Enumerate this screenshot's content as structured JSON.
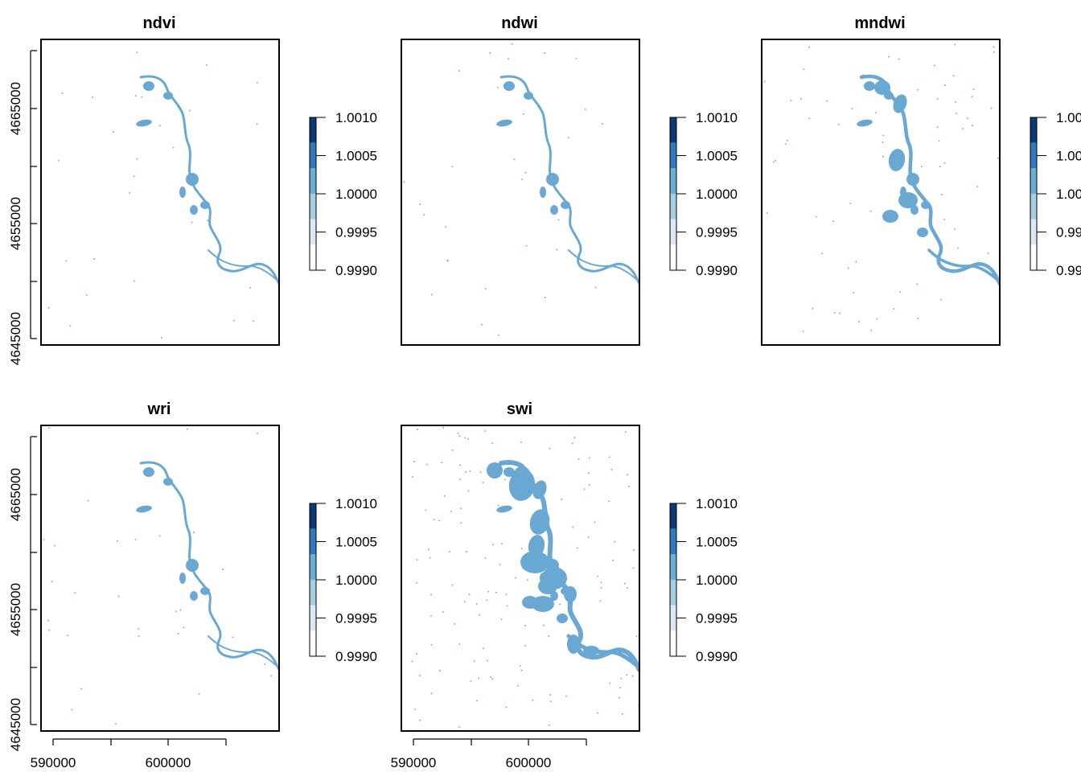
{
  "figure": {
    "panels": [
      {
        "title": "ndvi",
        "water_extent": "low"
      },
      {
        "title": "ndwi",
        "water_extent": "low"
      },
      {
        "title": "mndwi",
        "water_extent": "medium"
      },
      {
        "title": "wri",
        "water_extent": "low"
      },
      {
        "title": "swi",
        "water_extent": "high"
      }
    ],
    "y_tick_labels": [
      "4645000",
      "4655000",
      "4665000"
    ],
    "y_tick_values": [
      4645000,
      4655000,
      4665000
    ],
    "x_tick_labels": [
      "590000",
      "600000"
    ],
    "x_tick_values": [
      590000,
      600000
    ],
    "legend_labels": [
      "1.0010",
      "1.0005",
      "1.0000",
      "0.9995",
      "0.9990"
    ],
    "legend_values": [
      1.001,
      1.0005,
      1.0,
      0.9995,
      0.999
    ],
    "legend_colors": [
      "#ffffff",
      "#dbe9f5",
      "#a9cde3",
      "#6baed6",
      "#2f7bbf",
      "#0b3a75"
    ],
    "water_color": "#6aa8d4"
  }
}
